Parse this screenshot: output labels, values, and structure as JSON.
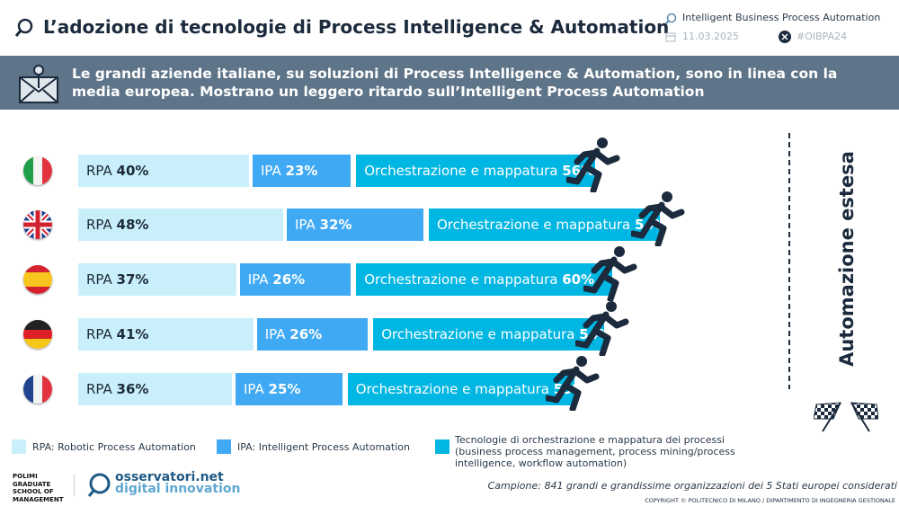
{
  "header": {
    "title": "L’adozione di tecnologie di Process Intelligence & Automation",
    "topic": "Intelligent Business Process Automation",
    "date": "11.03.2025",
    "hashtag": "#OIBPA24"
  },
  "banner": {
    "text": "Le grandi aziende italiane, su soluzioni di Process Intelligence & Automation, sono in linea con la media europea. Mostrano un leggero ritardo sull’Intelligent Process Automation"
  },
  "chart_data": {
    "type": "bar",
    "stacked": true,
    "orientation": "horizontal",
    "categories": [
      "Italia",
      "Regno Unito",
      "Spagna",
      "Germania",
      "Francia"
    ],
    "series": [
      {
        "name": "RPA",
        "values": [
          40,
          48,
          37,
          41,
          36
        ],
        "color": "#c9effb"
      },
      {
        "name": "IPA",
        "values": [
          23,
          32,
          26,
          26,
          25
        ],
        "color": "#40a9f4"
      },
      {
        "name": "Orchestrazione e mappatura",
        "values": [
          56,
          54,
          60,
          54,
          53
        ],
        "color": "#00b6e2"
      }
    ],
    "annotation": "Automazione estesa"
  },
  "legend": [
    {
      "label": "RPA: Robotic Process Automation",
      "color": "#c9effb"
    },
    {
      "label": "IPA: Intelligent Process Automation",
      "color": "#40a9f4"
    },
    {
      "label": "Tecnologie di orchestrazione e mappatura dei processi (business process management, process mining/process intelligence, workflow automation)",
      "color": "#00b6e2"
    }
  ],
  "footer": {
    "sample": "Campione: 841 grandi e grandissime organizzazioni dei 5 Stati europei considerati",
    "copyright": "COPYRIGHT © POLITECNICO DI MILANO / DIPARTIMENTO DI INGEGNERIA GESTIONALE",
    "logo1": "POLIMI GRADUATE SCHOOL OF MANAGEMENT",
    "logo2a": "osservatori.net",
    "logo2b": "digital innovation"
  }
}
